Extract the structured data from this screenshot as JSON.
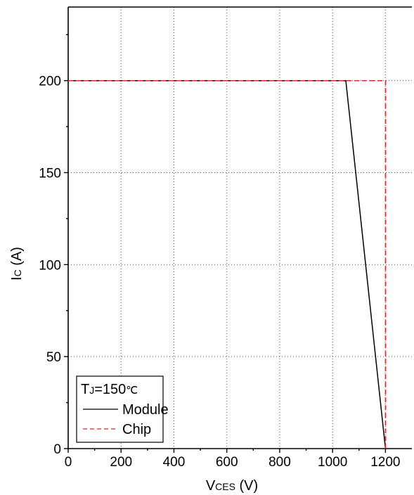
{
  "chart_data": {
    "type": "line",
    "x_axis": {
      "label_main": "V",
      "label_sub": "CES",
      "label_unit": " (V)",
      "range": [
        0,
        1300
      ],
      "ticks": [
        0,
        200,
        400,
        600,
        800,
        1000,
        1200
      ],
      "tick_labels": [
        "0",
        "200",
        "400",
        "600",
        "800",
        "1000",
        "1200"
      ]
    },
    "y_axis": {
      "label_main": "I",
      "label_sub": "C",
      "label_unit": " (A)",
      "range": [
        0,
        240
      ],
      "ticks": [
        0,
        50,
        100,
        150,
        200
      ],
      "tick_labels": [
        "0",
        "50",
        "100",
        "150",
        "200"
      ]
    },
    "grid": true,
    "legend": {
      "position": "bottom-left",
      "title_main": "T",
      "title_sub": "J",
      "title_rest": "=150",
      "title_unit": "℃",
      "entries": [
        "Module",
        "Chip"
      ]
    },
    "series": [
      {
        "name": "Module",
        "color": "#000000",
        "style": "solid",
        "x": [
          0,
          1050,
          1200
        ],
        "y": [
          200,
          200,
          0
        ]
      },
      {
        "name": "Chip",
        "color": "#e8212b",
        "style": "dashed",
        "x": [
          0,
          1200,
          1200
        ],
        "y": [
          200,
          200,
          0
        ]
      }
    ]
  }
}
